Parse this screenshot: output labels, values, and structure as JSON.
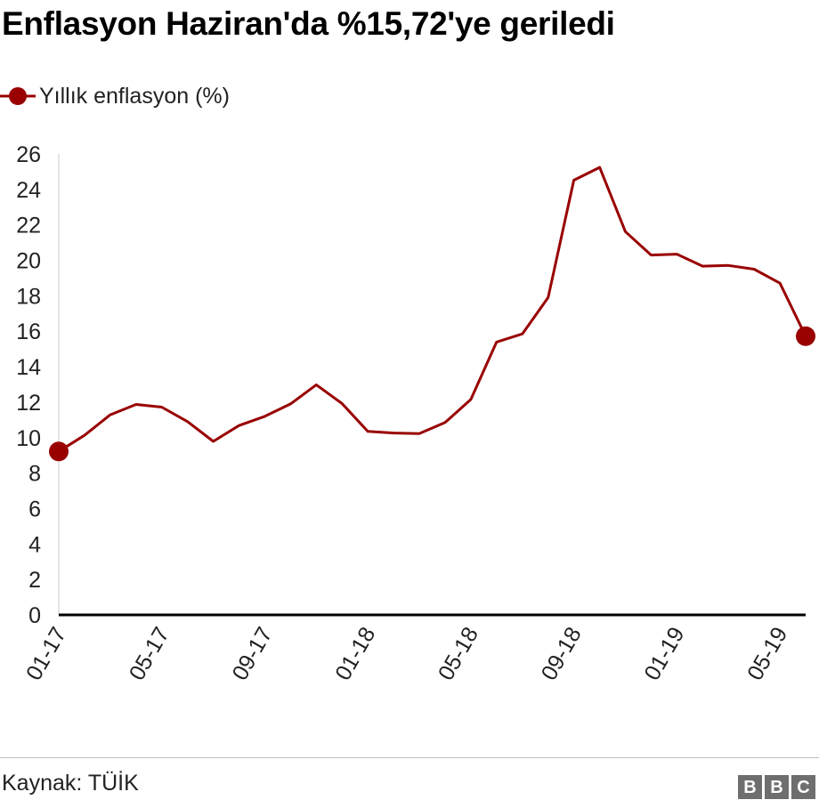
{
  "title": "Enflasyon Haziran'da %15,72'ye geriledi",
  "legend": {
    "label": "Yıllık enflasyon (%)"
  },
  "source": "Kaynak: TÜİK",
  "logo": {
    "letters": [
      "B",
      "B",
      "C"
    ]
  },
  "colors": {
    "line": "#990000",
    "axis": "#000000",
    "logo": "#6e6e6e"
  },
  "chart_data": {
    "type": "line",
    "title": "Enflasyon Haziran'da %15,72'ye geriledi",
    "xlabel": "",
    "ylabel": "",
    "ylim": [
      0,
      26
    ],
    "yticks": [
      0,
      2,
      4,
      6,
      8,
      10,
      12,
      14,
      16,
      18,
      20,
      22,
      24,
      26
    ],
    "x_tick_labels": [
      "01-17",
      "05-17",
      "09-17",
      "01-18",
      "05-18",
      "09-18",
      "01-19",
      "05-19"
    ],
    "x": [
      "01-17",
      "02-17",
      "03-17",
      "04-17",
      "05-17",
      "06-17",
      "07-17",
      "08-17",
      "09-17",
      "10-17",
      "11-17",
      "12-17",
      "01-18",
      "02-18",
      "03-18",
      "04-18",
      "05-18",
      "06-18",
      "07-18",
      "08-18",
      "09-18",
      "10-18",
      "11-18",
      "12-18",
      "01-19",
      "02-19",
      "03-19",
      "04-19",
      "05-19",
      "06-19"
    ],
    "series": [
      {
        "name": "Yıllık enflasyon (%)",
        "values": [
          9.22,
          10.13,
          11.29,
          11.87,
          11.72,
          10.9,
          9.79,
          10.68,
          11.2,
          11.9,
          12.98,
          11.92,
          10.35,
          10.26,
          10.23,
          10.85,
          12.15,
          15.39,
          15.85,
          17.9,
          24.52,
          25.24,
          21.62,
          20.3,
          20.35,
          19.67,
          19.71,
          19.5,
          18.71,
          15.72
        ],
        "markers": "first-and-last"
      }
    ],
    "grid": false,
    "legend_position": "top-left"
  }
}
